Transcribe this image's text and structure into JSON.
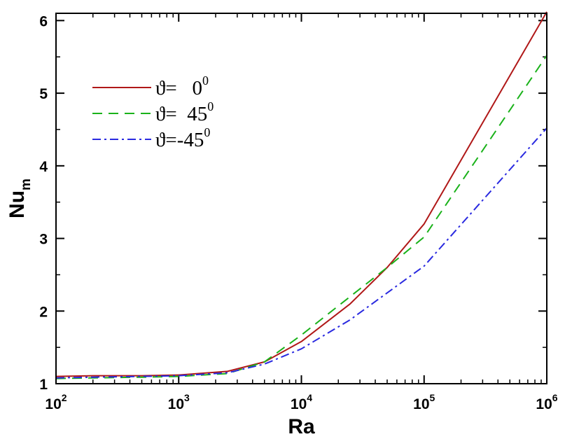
{
  "chart_data": {
    "type": "line",
    "xscale": "log",
    "xlim": [
      100,
      1000000
    ],
    "ylim": [
      1,
      6.1
    ],
    "xlabel": "Ra",
    "ylabel": {
      "base": "Nu",
      "sub": "m"
    },
    "xticks": [
      {
        "value": 100,
        "base": "10",
        "exp": "2"
      },
      {
        "value": 1000,
        "base": "10",
        "exp": "3"
      },
      {
        "value": 10000,
        "base": "10",
        "exp": "4"
      },
      {
        "value": 100000,
        "base": "10",
        "exp": "5"
      },
      {
        "value": 1000000,
        "base": "10",
        "exp": "6"
      }
    ],
    "yticks": [
      {
        "value": 1,
        "label": "1"
      },
      {
        "value": 2,
        "label": "2"
      },
      {
        "value": 3,
        "label": "3"
      },
      {
        "value": 4,
        "label": "4"
      },
      {
        "value": 5,
        "label": "5"
      },
      {
        "value": 6,
        "label": "6"
      }
    ],
    "grid": false,
    "legend_position": "upper-left",
    "series": [
      {
        "name": "ϑ=   0",
        "name_sup": "0",
        "color": "#b01818",
        "dash": "solid",
        "x": [
          100,
          200,
          500,
          1000,
          2500,
          5000,
          10000,
          25000,
          50000,
          100000,
          1000000
        ],
        "y": [
          1.1,
          1.11,
          1.11,
          1.12,
          1.17,
          1.3,
          1.58,
          2.1,
          2.6,
          3.2,
          6.12
        ]
      },
      {
        "name": "ϑ=  45",
        "name_sup": "0",
        "color": "#1ab21a",
        "dash": "dashed",
        "x": [
          100,
          200,
          500,
          1000,
          2500,
          5000,
          10000,
          25000,
          50000,
          100000,
          1000000
        ],
        "y": [
          1.07,
          1.08,
          1.09,
          1.1,
          1.14,
          1.3,
          1.67,
          2.2,
          2.6,
          3.02,
          5.52
        ]
      },
      {
        "name": "ϑ=-45",
        "name_sup": "0",
        "color": "#2a2ae0",
        "dash": "dashdot",
        "x": [
          100,
          200,
          500,
          1000,
          2500,
          5000,
          10000,
          25000,
          50000,
          100000,
          1000000
        ],
        "y": [
          1.08,
          1.09,
          1.1,
          1.11,
          1.15,
          1.27,
          1.48,
          1.88,
          2.25,
          2.62,
          4.52
        ]
      }
    ]
  }
}
